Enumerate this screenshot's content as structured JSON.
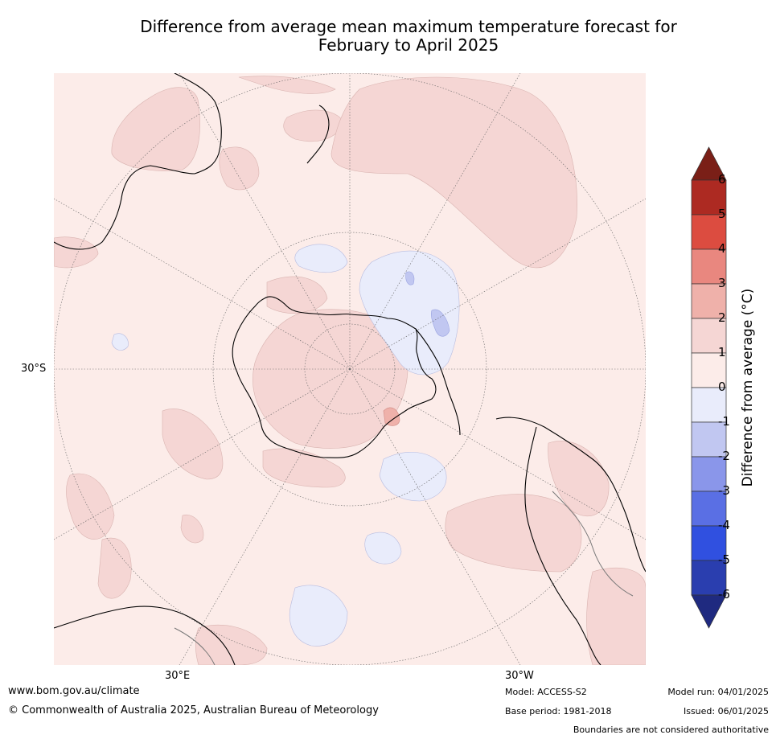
{
  "title": {
    "line1": "Difference from average mean maximum temperature forecast for",
    "line2": "February to April 2025"
  },
  "map": {
    "projection": "south-polar stereographic",
    "lat_label": "30°S",
    "lon_labels": [
      "30°E",
      "30°W"
    ],
    "ocean_color": "#fcece9"
  },
  "colorbar": {
    "label": "Difference from average (°C)",
    "ticks": [
      "6",
      "5",
      "4",
      "3",
      "2",
      "1",
      "0",
      "-1",
      "-2",
      "-3",
      "-4",
      "-5",
      "-6"
    ],
    "levels": [
      {
        "range": "> 6",
        "color": "#7a1f17"
      },
      {
        "range": "5 to 6",
        "color": "#ad2a22"
      },
      {
        "range": "4 to 5",
        "color": "#dc4c40"
      },
      {
        "range": "3 to 4",
        "color": "#e9877f"
      },
      {
        "range": "2 to 3",
        "color": "#efb1aa"
      },
      {
        "range": "1 to 2",
        "color": "#f5d6d4"
      },
      {
        "range": "0 to 1",
        "color": "#fcece9"
      },
      {
        "range": "-1 to 0",
        "color": "#e9ecfb"
      },
      {
        "range": "-2 to -1",
        "color": "#c1c7f1"
      },
      {
        "range": "-3 to -2",
        "color": "#8a96ea"
      },
      {
        "range": "-4 to -3",
        "color": "#5a6fe4"
      },
      {
        "range": "-5 to -4",
        "color": "#3050e0"
      },
      {
        "range": "-6 to -5",
        "color": "#2a3eaf"
      },
      {
        "range": "< -6",
        "color": "#1f2a80"
      }
    ]
  },
  "footer": {
    "url": "www.bom.gov.au/climate",
    "copyright": "© Commonwealth of Australia 2025, Australian Bureau of Meteorology",
    "model": "Model: ACCESS-S2",
    "base_period": "Base period: 1981-2018",
    "model_run": "Model run: 04/01/2025",
    "issued": "Issued: 06/01/2025",
    "disclaimer": "Boundaries are not considered authoritative"
  }
}
